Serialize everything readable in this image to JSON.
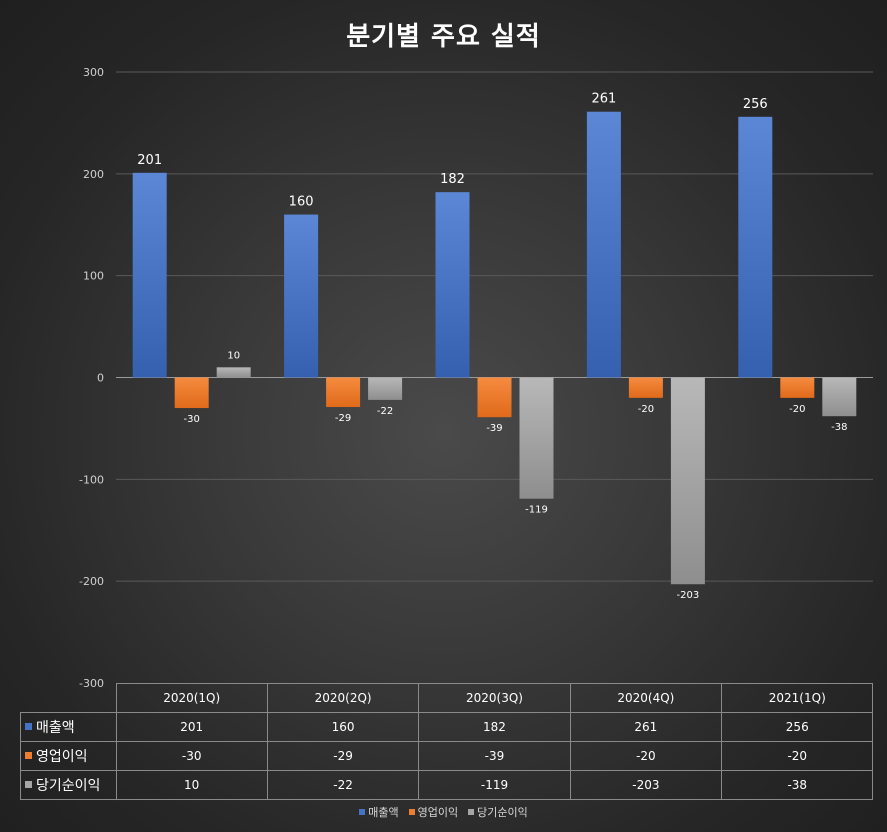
{
  "chart_data": {
    "type": "bar",
    "title": "분기별 주요 실적",
    "categories": [
      "2020(1Q)",
      "2020(2Q)",
      "2020(3Q)",
      "2020(4Q)",
      "2021(1Q)"
    ],
    "series": [
      {
        "name": "매출액",
        "values": [
          201,
          160,
          182,
          261,
          256
        ],
        "color": "#4472c4"
      },
      {
        "name": "영업이익",
        "values": [
          -30,
          -29,
          -39,
          -20,
          -20
        ],
        "color": "#ed7d31"
      },
      {
        "name": "당기순이익",
        "values": [
          10,
          -22,
          -119,
          -203,
          -38
        ],
        "color": "#a5a5a5"
      }
    ],
    "ylim": [
      -300,
      300
    ],
    "yticks": [
      300,
      200,
      100,
      0,
      -100,
      -200,
      -300
    ],
    "grid": true,
    "data_labels": true,
    "data_table": true,
    "legend_position": "bottom"
  }
}
